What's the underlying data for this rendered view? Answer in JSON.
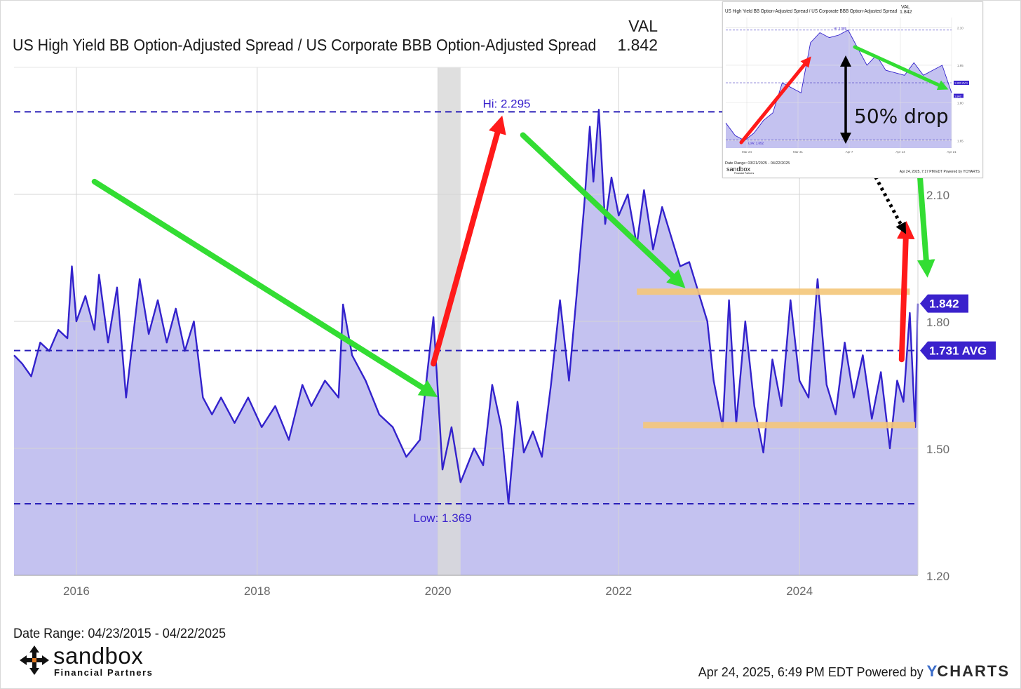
{
  "chart_data": {
    "type": "area",
    "title": "US High Yield BB Option-Adjusted Spread / US Corporate BBB Option-Adjusted Spread",
    "value_header": "VAL",
    "current_value": "1.842",
    "date_range": "Date Range: 04/23/2015 - 04/22/2025",
    "x_range": [
      2015.31,
      2025.31
    ],
    "ylim": [
      1.2,
      2.4
    ],
    "y_ticks": [
      1.2,
      1.5,
      1.8,
      2.1
    ],
    "y_tick_labels": [
      "1.20",
      "1.50",
      "1.80",
      "2.10"
    ],
    "x_ticks": [
      2016,
      2018,
      2020,
      2022,
      2024
    ],
    "x_tick_labels": [
      "2016",
      "2018",
      "2020",
      "2022",
      "2024"
    ],
    "grid": true,
    "recession_band": [
      2020.0,
      2020.25
    ],
    "reference_lines": {
      "high": {
        "value": 2.295,
        "label": "Hi: 2.295"
      },
      "low": {
        "value": 1.369,
        "label": "Low: 1.369"
      },
      "average": {
        "value": 1.731,
        "label": "1.731 AVG"
      }
    },
    "last_value_label": "1.842",
    "series": [
      {
        "values": [
          [
            2015.31,
            1.72
          ],
          [
            2015.4,
            1.7
          ],
          [
            2015.5,
            1.67
          ],
          [
            2015.6,
            1.75
          ],
          [
            2015.7,
            1.73
          ],
          [
            2015.8,
            1.78
          ],
          [
            2015.9,
            1.76
          ],
          [
            2015.95,
            1.93
          ],
          [
            2016.0,
            1.8
          ],
          [
            2016.1,
            1.86
          ],
          [
            2016.2,
            1.78
          ],
          [
            2016.25,
            1.91
          ],
          [
            2016.35,
            1.75
          ],
          [
            2016.45,
            1.88
          ],
          [
            2016.55,
            1.62
          ],
          [
            2016.7,
            1.9
          ],
          [
            2016.8,
            1.77
          ],
          [
            2016.9,
            1.85
          ],
          [
            2017.0,
            1.75
          ],
          [
            2017.1,
            1.83
          ],
          [
            2017.2,
            1.73
          ],
          [
            2017.3,
            1.8
          ],
          [
            2017.4,
            1.62
          ],
          [
            2017.5,
            1.58
          ],
          [
            2017.6,
            1.62
          ],
          [
            2017.75,
            1.56
          ],
          [
            2017.9,
            1.62
          ],
          [
            2018.05,
            1.55
          ],
          [
            2018.2,
            1.6
          ],
          [
            2018.35,
            1.52
          ],
          [
            2018.5,
            1.65
          ],
          [
            2018.6,
            1.6
          ],
          [
            2018.75,
            1.66
          ],
          [
            2018.9,
            1.62
          ],
          [
            2018.95,
            1.84
          ],
          [
            2019.05,
            1.72
          ],
          [
            2019.2,
            1.66
          ],
          [
            2019.35,
            1.58
          ],
          [
            2019.5,
            1.55
          ],
          [
            2019.65,
            1.48
          ],
          [
            2019.8,
            1.52
          ],
          [
            2019.95,
            1.81
          ],
          [
            2020.05,
            1.45
          ],
          [
            2020.15,
            1.55
          ],
          [
            2020.25,
            1.42
          ],
          [
            2020.4,
            1.5
          ],
          [
            2020.5,
            1.46
          ],
          [
            2020.6,
            1.65
          ],
          [
            2020.7,
            1.55
          ],
          [
            2020.78,
            1.37
          ],
          [
            2020.88,
            1.61
          ],
          [
            2020.95,
            1.49
          ],
          [
            2021.05,
            1.54
          ],
          [
            2021.15,
            1.48
          ],
          [
            2021.25,
            1.65
          ],
          [
            2021.35,
            1.85
          ],
          [
            2021.45,
            1.66
          ],
          [
            2021.55,
            1.9
          ],
          [
            2021.62,
            2.08
          ],
          [
            2021.68,
            2.26
          ],
          [
            2021.72,
            2.13
          ],
          [
            2021.78,
            2.3
          ],
          [
            2021.85,
            2.03
          ],
          [
            2021.92,
            2.14
          ],
          [
            2022.0,
            2.05
          ],
          [
            2022.1,
            2.1
          ],
          [
            2022.2,
            1.98
          ],
          [
            2022.28,
            2.11
          ],
          [
            2022.38,
            1.97
          ],
          [
            2022.48,
            2.07
          ],
          [
            2022.58,
            2.0
          ],
          [
            2022.68,
            1.93
          ],
          [
            2022.78,
            1.94
          ],
          [
            2022.88,
            1.87
          ],
          [
            2022.98,
            1.8
          ],
          [
            2023.05,
            1.66
          ],
          [
            2023.15,
            1.55
          ],
          [
            2023.22,
            1.85
          ],
          [
            2023.3,
            1.56
          ],
          [
            2023.4,
            1.8
          ],
          [
            2023.5,
            1.6
          ],
          [
            2023.6,
            1.49
          ],
          [
            2023.7,
            1.71
          ],
          [
            2023.8,
            1.6
          ],
          [
            2023.9,
            1.85
          ],
          [
            2024.0,
            1.66
          ],
          [
            2024.1,
            1.62
          ],
          [
            2024.2,
            1.9
          ],
          [
            2024.3,
            1.65
          ],
          [
            2024.4,
            1.58
          ],
          [
            2024.5,
            1.75
          ],
          [
            2024.6,
            1.62
          ],
          [
            2024.7,
            1.72
          ],
          [
            2024.8,
            1.57
          ],
          [
            2024.9,
            1.68
          ],
          [
            2025.0,
            1.5
          ],
          [
            2025.08,
            1.66
          ],
          [
            2025.15,
            1.61
          ],
          [
            2025.22,
            1.82
          ],
          [
            2025.28,
            1.55
          ],
          [
            2025.31,
            1.842
          ]
        ]
      }
    ],
    "annotations": [
      {
        "type": "arrow",
        "color": "#33dd33",
        "description": "decline 2016-2019"
      },
      {
        "type": "arrow",
        "color": "#ff1a1a",
        "description": "surge 2020"
      },
      {
        "type": "arrow",
        "color": "#33dd33",
        "description": "decline 2020-2022"
      },
      {
        "type": "band",
        "color": "#f5c77a",
        "value": 1.87
      },
      {
        "type": "band",
        "color": "#f5c77a",
        "value": 1.555
      },
      {
        "type": "arrow",
        "color": "#ff1a1a",
        "description": "rise 2025"
      },
      {
        "type": "arrow",
        "color": "#33dd33",
        "description": "drop 2025"
      }
    ],
    "inset": {
      "title": "US High Yield BB Option-Adjusted Spread / US Corporate BBB Option-Adjusted Spread",
      "value_header": "VAL",
      "current_value": "1.842",
      "hi_label": "Hi: 2.085",
      "low_label": "Low: 1.652",
      "avg_label": "1.880 AVG",
      "last_label": "1.842",
      "y_tick_labels": [
        "2.10",
        "1.95",
        "1.80",
        "1.65"
      ],
      "x_tick_labels": [
        "Mar 24",
        "Mar 31",
        "Apr 7",
        "Apr 14",
        "Apr 21"
      ],
      "drop_label": "50% drop",
      "date_range": "Date Range: 03/21/2025 - 04/22/2025",
      "footer": "Apr 24, 2025, 7:17 PM EDT Powered by YCHARTS",
      "values": [
        1.72,
        1.67,
        1.65,
        1.68,
        1.73,
        1.76,
        1.88,
        1.86,
        1.84,
        2.04,
        2.08,
        2.06,
        2.07,
        2.09,
        2.02,
        1.95,
        1.99,
        1.93,
        1.92,
        1.91,
        1.96,
        1.91,
        1.93,
        1.95,
        1.84
      ]
    }
  },
  "footer": {
    "timestamp": "Apr 24, 2025, 6:49 PM EDT Powered by",
    "brand_y": "Y",
    "brand_rest": "CHARTS"
  },
  "logo": {
    "name": "sandbox",
    "sub": "Financial Partners"
  },
  "colors": {
    "series_line": "#3322cc",
    "area_fill": "#c4c2f0",
    "reference_dash": "#2a1fb8",
    "label_badge": "#3a22cc",
    "recession_band": "#d9d9d9",
    "green_arrow": "#33dd33",
    "red_arrow": "#ff1a1a",
    "band_highlight": "#f5c77a"
  }
}
